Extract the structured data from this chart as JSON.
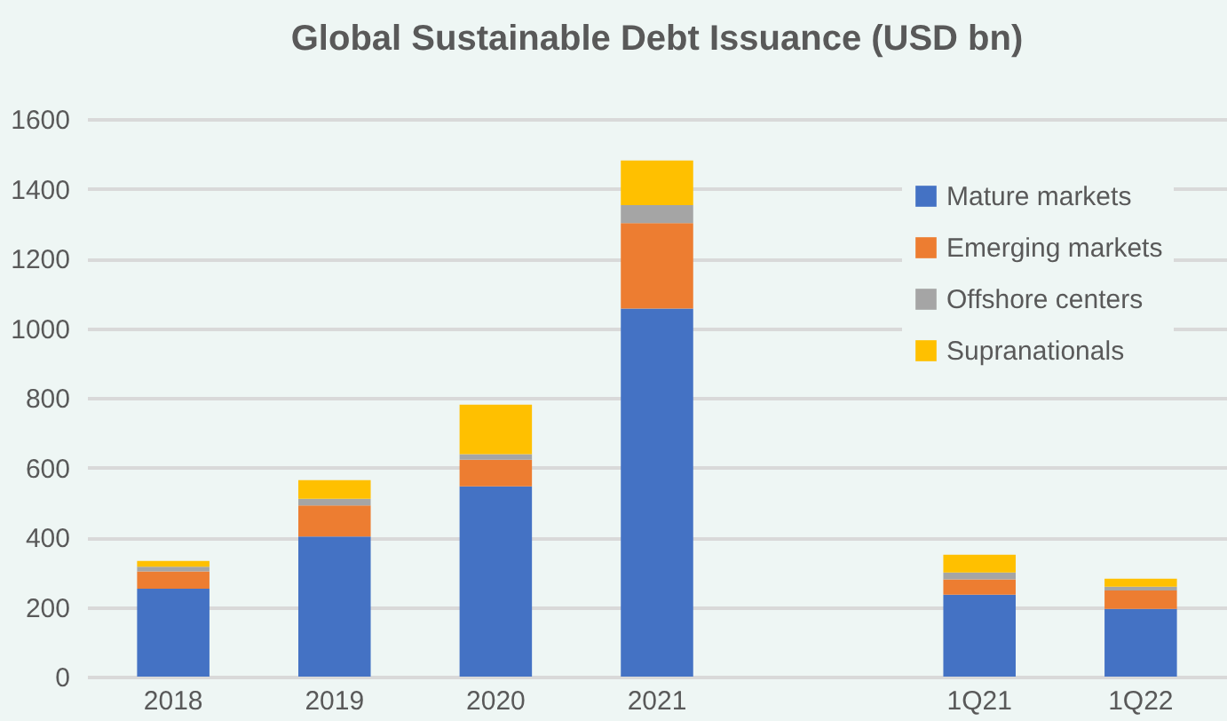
{
  "chart_data": {
    "type": "bar",
    "title": "Global Sustainable Debt Issuance (USD bn)",
    "stacked": true,
    "categories": [
      "2018",
      "2019",
      "2020",
      "2021",
      null,
      "1Q21",
      "1Q22"
    ],
    "series": [
      {
        "name": "Mature markets",
        "color": "#4472c4",
        "values": [
          252,
          402,
          546,
          1056,
          null,
          235,
          194
        ]
      },
      {
        "name": "Emerging markets",
        "color": "#ed7d31",
        "values": [
          50,
          89,
          76,
          245,
          null,
          44,
          53
        ]
      },
      {
        "name": "Offshore centers",
        "color": "#a5a5a5",
        "values": [
          13,
          19,
          16,
          52,
          null,
          20,
          11
        ]
      },
      {
        "name": "Supranationals",
        "color": "#ffc000",
        "values": [
          17,
          54,
          142,
          128,
          null,
          51,
          23
        ]
      }
    ],
    "ylim": [
      0,
      1600
    ],
    "yticks": [
      0,
      200,
      400,
      600,
      800,
      1000,
      1200,
      1400,
      1600
    ],
    "grid": "y",
    "legend": "top right"
  }
}
